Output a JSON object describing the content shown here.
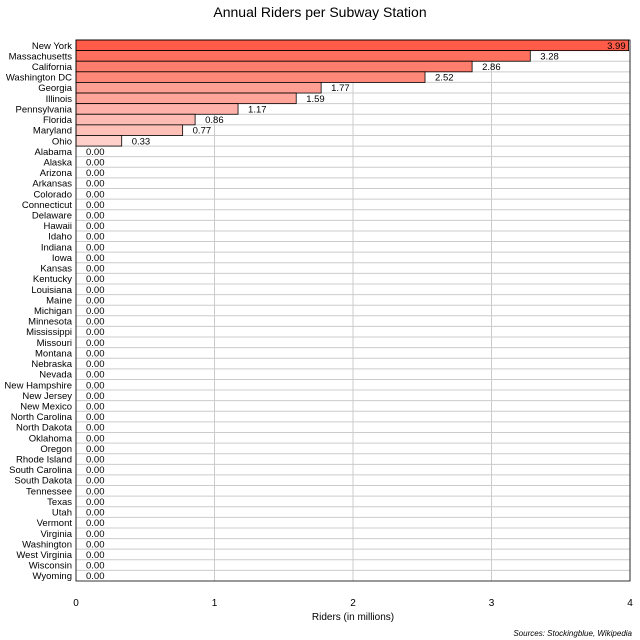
{
  "chart_data": {
    "type": "bar",
    "orientation": "horizontal",
    "title": "Annual Riders per Subway Station",
    "xlabel": "Riders (in millions)",
    "ylabel": "",
    "xlim": [
      0,
      4
    ],
    "x_ticks": [
      "0",
      "1",
      "2",
      "3",
      "4"
    ],
    "grid": true,
    "categories": [
      "New York",
      "Massachusetts",
      "California",
      "Washington DC",
      "Georgia",
      "Illinois",
      "Pennsylvania",
      "Florida",
      "Maryland",
      "Ohio",
      "Alabama",
      "Alaska",
      "Arizona",
      "Arkansas",
      "Colorado",
      "Connecticut",
      "Delaware",
      "Hawaii",
      "Idaho",
      "Indiana",
      "Iowa",
      "Kansas",
      "Kentucky",
      "Louisiana",
      "Maine",
      "Michigan",
      "Minnesota",
      "Mississippi",
      "Missouri",
      "Montana",
      "Nebraska",
      "Nevada",
      "New Hampshire",
      "New Jersey",
      "New Mexico",
      "North Carolina",
      "North Dakota",
      "Oklahoma",
      "Oregon",
      "Rhode Island",
      "South Carolina",
      "South Dakota",
      "Tennessee",
      "Texas",
      "Utah",
      "Vermont",
      "Virginia",
      "Washington",
      "West Virginia",
      "Wisconsin",
      "Wyoming"
    ],
    "values": [
      3.99,
      3.28,
      2.86,
      2.52,
      1.77,
      1.59,
      1.17,
      0.86,
      0.77,
      0.33,
      0,
      0,
      0,
      0,
      0,
      0,
      0,
      0,
      0,
      0,
      0,
      0,
      0,
      0,
      0,
      0,
      0,
      0,
      0,
      0,
      0,
      0,
      0,
      0,
      0,
      0,
      0,
      0,
      0,
      0,
      0,
      0,
      0,
      0,
      0,
      0,
      0,
      0,
      0,
      0,
      0
    ],
    "value_labels": [
      "3.99",
      "3.28",
      "2.86",
      "2.52",
      "1.77",
      "1.59",
      "1.17",
      "0.86",
      "0.77",
      "0.33",
      "0.00",
      "0.00",
      "0.00",
      "0.00",
      "0.00",
      "0.00",
      "0.00",
      "0.00",
      "0.00",
      "0.00",
      "0.00",
      "0.00",
      "0.00",
      "0.00",
      "0.00",
      "0.00",
      "0.00",
      "0.00",
      "0.00",
      "0.00",
      "0.00",
      "0.00",
      "0.00",
      "0.00",
      "0.00",
      "0.00",
      "0.00",
      "0.00",
      "0.00",
      "0.00",
      "0.00",
      "0.00",
      "0.00",
      "0.00",
      "0.00",
      "0.00",
      "0.00",
      "0.00",
      "0.00",
      "0.00",
      "0.00"
    ],
    "bar_colors": [
      "#ff5b49",
      "#ff6f5e",
      "#ff7d6d",
      "#ff8878",
      "#ff9f93",
      "#ffa59a",
      "#ffb2a9",
      "#ffbcb4",
      "#ffc0b8",
      "#ffcfc9"
    ],
    "source": "Sources: Stockingblue, Wikipedia"
  }
}
